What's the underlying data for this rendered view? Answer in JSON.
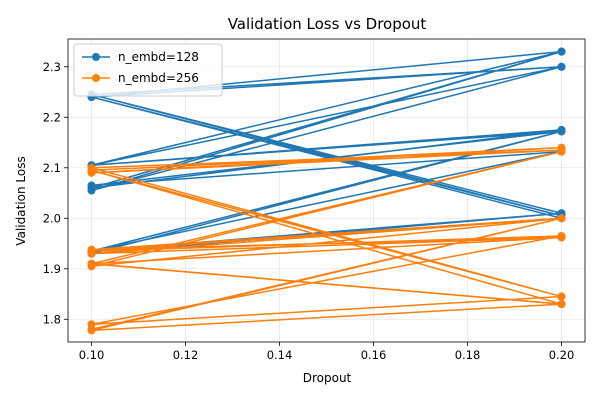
{
  "chart_data": {
    "type": "line",
    "title": "Validation Loss vs Dropout",
    "xlabel": "Dropout",
    "ylabel": "Validation Loss",
    "xlim": [
      0.095,
      0.205
    ],
    "ylim": [
      1.755,
      2.355
    ],
    "xticks": [
      "0.10",
      "0.12",
      "0.14",
      "0.16",
      "0.18",
      "0.20"
    ],
    "yticks": [
      "1.8",
      "1.9",
      "2.0",
      "2.1",
      "2.2",
      "2.3"
    ],
    "grid": true,
    "legend_position": "top-left",
    "series": [
      {
        "name": "n_embd=128",
        "color": "#1f77b4",
        "x": [
          0.1,
          0.2,
          0.1,
          0.2,
          0.1,
          0.2,
          0.1,
          0.2,
          0.1,
          0.2,
          0.1,
          0.2,
          0.1,
          0.2,
          0.1,
          0.2,
          0.1,
          0.2,
          0.1,
          0.2,
          0.1,
          0.2,
          0.1,
          0.2
        ],
        "y": [
          2.245,
          2.3,
          2.24,
          2.33,
          2.105,
          2.175,
          2.06,
          2.33,
          2.055,
          2.3,
          2.105,
          2.172,
          2.065,
          2.132,
          1.935,
          2.172,
          1.93,
          2.01,
          1.935,
          2.0,
          2.24,
          2.005,
          2.245,
          2.01
        ]
      },
      {
        "name": "n_embd=256",
        "color": "#ff7f0e",
        "x": [
          0.1,
          0.2,
          0.1,
          0.2,
          0.1,
          0.2,
          0.1,
          0.2,
          0.1,
          0.2,
          0.1,
          0.2,
          0.1,
          0.2,
          0.1,
          0.2,
          0.1,
          0.2,
          0.1,
          0.2
        ],
        "y": [
          2.095,
          2.14,
          2.09,
          2.135,
          2.1,
          1.845,
          2.095,
          1.83,
          1.91,
          2.132,
          1.905,
          2.0,
          1.938,
          1.962,
          1.93,
          2.0,
          1.935,
          1.965,
          1.79,
          1.845
        ]
      },
      {
        "name": "",
        "color": "#ff7f0e",
        "x": [
          0.1,
          0.2,
          0.1,
          0.2,
          0.1,
          0.2
        ],
        "y": [
          1.78,
          2.0,
          1.778,
          1.83,
          1.91,
          1.962
        ]
      }
    ]
  }
}
